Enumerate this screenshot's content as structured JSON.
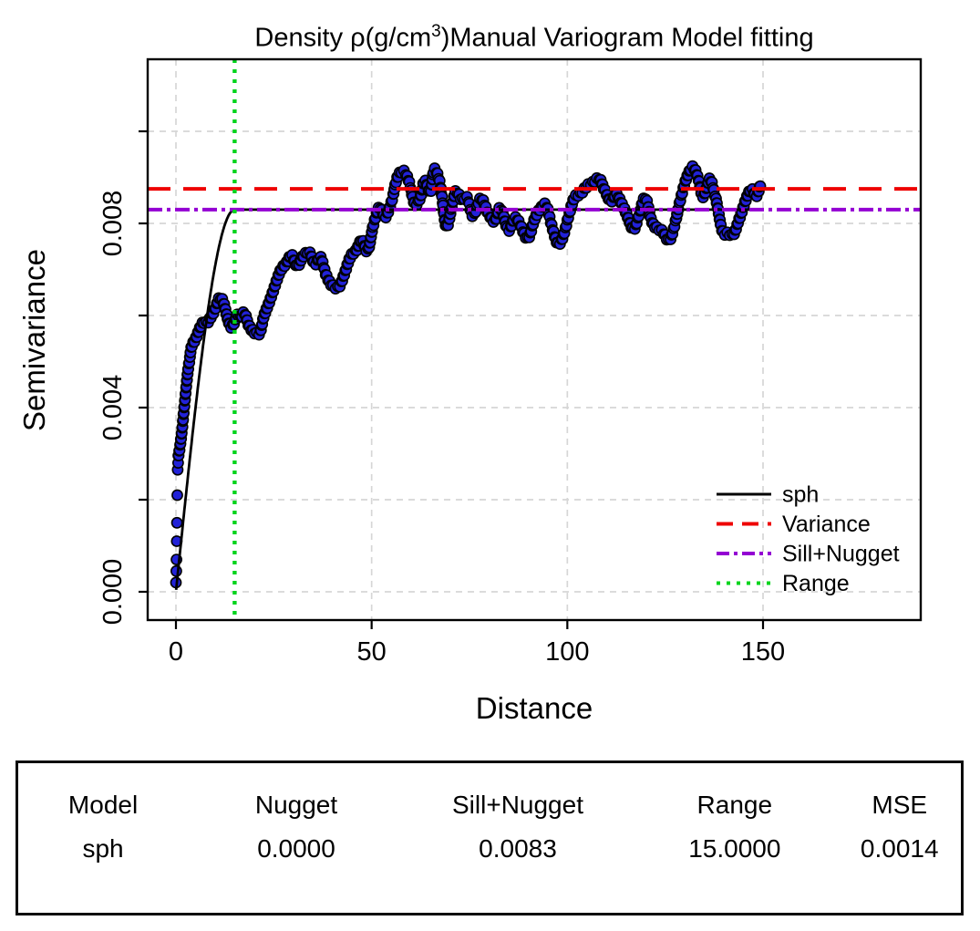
{
  "title": {
    "part1": "Density ρ(g/cm",
    "sup": "3",
    "part2": ")Manual Variogram Model fitting"
  },
  "chart_data": {
    "type": "scatter",
    "title": "Density ρ(g/cm3) Manual Variogram Model fitting",
    "xlabel": "Distance",
    "ylabel": "Semivariance",
    "xlim": [
      -7.2,
      190.3
    ],
    "ylim": [
      -0.0006,
      0.0116
    ],
    "grid": true,
    "x_ticks": [
      {
        "v": 0,
        "label": "0"
      },
      {
        "v": 50,
        "label": "50"
      },
      {
        "v": 100,
        "label": "100"
      },
      {
        "v": 150,
        "label": "150"
      }
    ],
    "y_ticks": [
      {
        "v": 0,
        "label": "0.000"
      },
      {
        "v": 0.002,
        "label": ""
      },
      {
        "v": 0.004,
        "label": "0.004"
      },
      {
        "v": 0.006,
        "label": ""
      },
      {
        "v": 0.008,
        "label": "0.008"
      },
      {
        "v": 0.01,
        "label": ""
      }
    ],
    "points": {
      "name": "empirical-semivariogram",
      "marker": "circle",
      "fill_color": "#2222d8",
      "edge_color": "#000000",
      "low_lag_points": [
        [
          0.0,
          0.0002
        ],
        [
          0.1,
          0.00045
        ],
        [
          0.15,
          0.0007
        ],
        [
          0.2,
          0.0011
        ],
        [
          0.25,
          0.0015
        ],
        [
          0.35,
          0.0021
        ],
        [
          0.45,
          0.00265
        ],
        [
          0.55,
          0.0028
        ]
      ],
      "band_anchor_points": [
        [
          0.6,
          0.003
        ],
        [
          1.0,
          0.0032
        ],
        [
          1.5,
          0.0035
        ],
        [
          2.0,
          0.0039
        ],
        [
          2.5,
          0.0043
        ],
        [
          3.0,
          0.0047
        ],
        [
          3.5,
          0.005
        ],
        [
          4.0,
          0.0053
        ],
        [
          5.0,
          0.0055
        ],
        [
          6.0,
          0.0057
        ],
        [
          7.0,
          0.0058
        ],
        [
          8.0,
          0.0058
        ],
        [
          9.0,
          0.006
        ],
        [
          10.0,
          0.0062
        ],
        [
          11.0,
          0.0064
        ],
        [
          12.0,
          0.0063
        ],
        [
          13.0,
          0.006
        ],
        [
          14.0,
          0.0058
        ],
        [
          15.0,
          0.0059
        ],
        [
          15.8,
          0.006
        ],
        [
          16.6,
          0.0059
        ],
        [
          17.5,
          0.006
        ],
        [
          18.5,
          0.0058
        ],
        [
          19.5,
          0.0057
        ],
        [
          20.5,
          0.0056
        ],
        [
          21.5,
          0.0056
        ],
        [
          22.5,
          0.006
        ],
        [
          24.0,
          0.0064
        ],
        [
          25.5,
          0.0067
        ],
        [
          27.0,
          0.007
        ],
        [
          28.5,
          0.0072
        ],
        [
          29.5,
          0.0073
        ],
        [
          31.0,
          0.007
        ],
        [
          32.5,
          0.0073
        ],
        [
          34.0,
          0.0074
        ],
        [
          35.5,
          0.0071
        ],
        [
          37.0,
          0.0073
        ],
        [
          38.5,
          0.0069
        ],
        [
          40.0,
          0.0066
        ],
        [
          41.5,
          0.0066
        ],
        [
          43.0,
          0.0069
        ],
        [
          44.5,
          0.0072
        ],
        [
          46.0,
          0.0074
        ],
        [
          47.5,
          0.0077
        ],
        [
          49.0,
          0.0074
        ],
        [
          50.5,
          0.008
        ],
        [
          52.0,
          0.0084
        ],
        [
          53.5,
          0.0081
        ],
        [
          55.0,
          0.0084
        ],
        [
          56.5,
          0.009
        ],
        [
          58.0,
          0.0091
        ],
        [
          59.5,
          0.0089
        ],
        [
          61.0,
          0.0085
        ],
        [
          62.5,
          0.0086
        ],
        [
          63.5,
          0.0089
        ],
        [
          65.0,
          0.0087
        ],
        [
          66.0,
          0.0092
        ],
        [
          67.5,
          0.0088
        ],
        [
          69.0,
          0.0079
        ],
        [
          70.5,
          0.0084
        ],
        [
          71.5,
          0.0087
        ],
        [
          73.0,
          0.0085
        ],
        [
          74.5,
          0.0086
        ],
        [
          76.0,
          0.0082
        ],
        [
          78.0,
          0.0085
        ],
        [
          80.0,
          0.0082
        ],
        [
          81.5,
          0.008
        ],
        [
          83.0,
          0.0083
        ],
        [
          85.0,
          0.0079
        ],
        [
          86.5,
          0.0081
        ],
        [
          88.0,
          0.008
        ],
        [
          90.0,
          0.0077
        ],
        [
          91.5,
          0.008
        ],
        [
          93.0,
          0.0083
        ],
        [
          94.5,
          0.0084
        ],
        [
          96.0,
          0.0079
        ],
        [
          97.5,
          0.0076
        ],
        [
          99.0,
          0.0078
        ],
        [
          100.5,
          0.0082
        ],
        [
          102.0,
          0.0086
        ],
        [
          104.0,
          0.0087
        ],
        [
          106.0,
          0.0088
        ],
        [
          108.0,
          0.009
        ],
        [
          109.5,
          0.0087
        ],
        [
          111.0,
          0.0085
        ],
        [
          112.5,
          0.0087
        ],
        [
          114.0,
          0.0084
        ],
        [
          115.5,
          0.0081
        ],
        [
          117.0,
          0.0079
        ],
        [
          118.5,
          0.0082
        ],
        [
          120.0,
          0.0085
        ],
        [
          121.5,
          0.0081
        ],
        [
          123.0,
          0.0079
        ],
        [
          124.5,
          0.0078
        ],
        [
          126.0,
          0.0077
        ],
        [
          127.5,
          0.008
        ],
        [
          129.0,
          0.0085
        ],
        [
          130.5,
          0.009
        ],
        [
          132.0,
          0.0092
        ],
        [
          133.5,
          0.0089
        ],
        [
          134.5,
          0.0086
        ],
        [
          135.5,
          0.0088
        ],
        [
          136.5,
          0.009
        ],
        [
          138.0,
          0.0085
        ],
        [
          139.5,
          0.0079
        ],
        [
          141.0,
          0.0078
        ],
        [
          142.5,
          0.0077
        ],
        [
          144.0,
          0.0081
        ],
        [
          145.5,
          0.0085
        ],
        [
          147.0,
          0.0087
        ],
        [
          148.2,
          0.0086
        ],
        [
          149.3,
          0.0089
        ]
      ]
    },
    "model_line": {
      "name": "sph",
      "model": "spherical",
      "nugget": 0.0,
      "sill_plus_nugget": 0.0083,
      "range": 15.0,
      "x_max": 150,
      "color": "#000000"
    },
    "ref_lines": [
      {
        "name": "Variance",
        "orientation": "horizontal",
        "value": 0.00875,
        "color": "#ee0000",
        "dash": "25,14"
      },
      {
        "name": "Sill+Nugget",
        "orientation": "horizontal",
        "value": 0.0083,
        "color": "#9400d3",
        "dash": "16,5,4,5"
      },
      {
        "name": "Range",
        "orientation": "vertical",
        "value": 15.0,
        "color": "#00d41c",
        "dash": "4,7"
      }
    ],
    "legend": {
      "position": "bottom-right",
      "entries": [
        {
          "label": "sph",
          "color": "#000000",
          "dash": "",
          "width": 3
        },
        {
          "label": "Variance",
          "color": "#ee0000",
          "dash": "18,10",
          "width": 4
        },
        {
          "label": "Sill+Nugget",
          "color": "#9400d3",
          "dash": "14,5,4,5",
          "width": 4
        },
        {
          "label": "Range",
          "color": "#00d41c",
          "dash": "4,7",
          "width": 4
        }
      ]
    },
    "grid_color": "#d6d6d6"
  },
  "table": {
    "headers": [
      "Model",
      "Nugget",
      "Sill+Nugget",
      "Range",
      "MSE"
    ],
    "rows": [
      [
        "sph",
        "0.0000",
        "0.0083",
        "15.0000",
        "0.0014"
      ]
    ]
  }
}
